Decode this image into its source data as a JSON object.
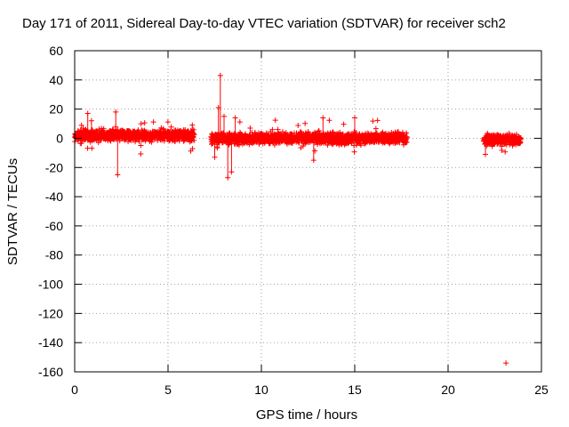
{
  "chart_data": {
    "type": "scatter",
    "title": "Day 171 of 2011, Sidereal Day-to-day VTEC variation (SDTVAR) for receiver sch2",
    "xlabel": "GPS time / hours",
    "ylabel": "SDTVAR / TECUs",
    "xlim": [
      0,
      25
    ],
    "ylim": [
      -160,
      60
    ],
    "xticks": [
      0,
      5,
      10,
      15,
      20,
      25
    ],
    "yticks": [
      60,
      40,
      20,
      0,
      -20,
      -40,
      -60,
      -80,
      -100,
      -120,
      -140,
      -160
    ],
    "grid": true,
    "marker": "+",
    "series_color": "#ff0000",
    "segments": [
      {
        "name": "segment-1",
        "x_range": [
          0.0,
          6.4
        ],
        "center": 2.0,
        "spread": 2.5
      },
      {
        "name": "segment-2",
        "x_range": [
          7.3,
          17.8
        ],
        "center": 0.0,
        "spread": 2.5
      },
      {
        "name": "segment-3",
        "x_range": [
          21.9,
          23.9
        ],
        "center": -1.0,
        "spread": 2.5
      }
    ],
    "outliers": [
      {
        "x": 7.8,
        "y": 43
      },
      {
        "x": 7.7,
        "y": 21
      },
      {
        "x": 8.2,
        "y": -27
      },
      {
        "x": 8.4,
        "y": -23
      },
      {
        "x": 2.3,
        "y": -25
      },
      {
        "x": 2.2,
        "y": 18
      },
      {
        "x": 0.7,
        "y": 17
      },
      {
        "x": 0.9,
        "y": 12
      },
      {
        "x": 7.5,
        "y": -13
      },
      {
        "x": 8.0,
        "y": 15
      },
      {
        "x": 8.6,
        "y": 14
      },
      {
        "x": 12.8,
        "y": -15
      },
      {
        "x": 13.3,
        "y": 14
      },
      {
        "x": 15.0,
        "y": 14
      },
      {
        "x": 6.3,
        "y": 9
      },
      {
        "x": 9.4,
        "y": 7
      },
      {
        "x": 22.0,
        "y": -11
      },
      {
        "x": 23.1,
        "y": -154
      }
    ]
  }
}
